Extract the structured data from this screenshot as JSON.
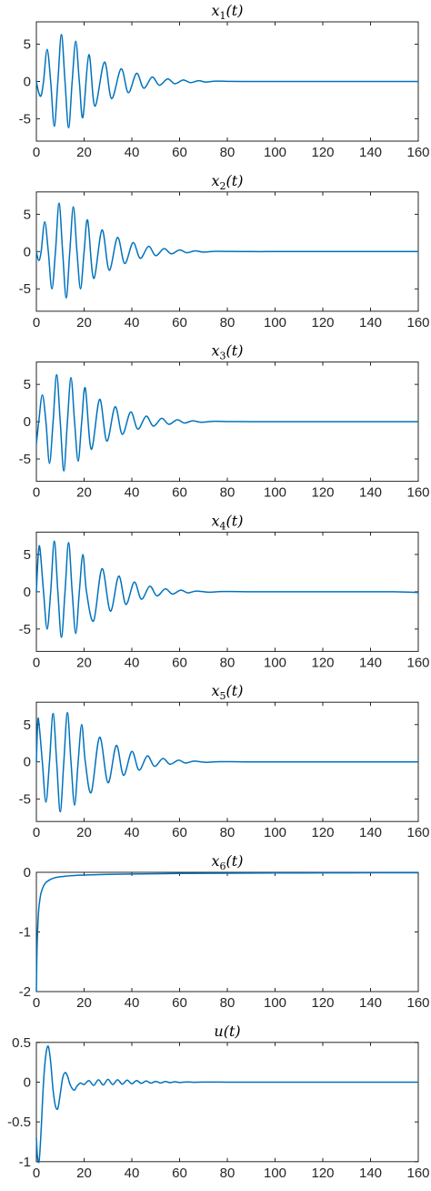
{
  "colors": {
    "series": "#0072BD",
    "axis": "#262626",
    "background": "#ffffff"
  },
  "chart_data": [
    {
      "type": "line",
      "title": "x1(t)",
      "xlim": [
        0,
        160
      ],
      "ylim": [
        -8,
        8
      ],
      "xticks": [
        0,
        20,
        40,
        60,
        80,
        100,
        120,
        140,
        160
      ],
      "yticks": [
        5,
        0,
        -5
      ],
      "xtick_labels": [
        "0",
        "20",
        "40",
        "60",
        "80",
        "100",
        "120",
        "140",
        "160"
      ],
      "ytick_labels": [
        "5",
        "0",
        "-5"
      ],
      "grid": false,
      "series": [
        {
          "x": [
            0,
            1,
            2,
            3,
            4.5,
            6,
            7.5,
            9,
            10.5,
            12,
            13.5,
            15,
            16.5,
            18,
            19.5,
            22,
            24.5,
            28.5,
            31.5,
            35.5,
            38.5,
            42,
            45,
            48.5,
            51.5,
            55,
            58,
            61.5,
            64.5,
            68,
            71,
            75,
            80,
            90,
            100,
            110,
            120,
            130,
            140,
            150,
            160
          ],
          "y": [
            0,
            -1.5,
            -1.9,
            0,
            4.3,
            0,
            -6.0,
            0,
            6.3,
            0,
            -6.2,
            0,
            5.4,
            0,
            -4.8,
            3.6,
            -3.3,
            2.6,
            -2.3,
            1.7,
            -1.5,
            1.1,
            -0.9,
            0.6,
            -0.5,
            0.35,
            -0.3,
            0.2,
            -0.15,
            0.1,
            -0.08,
            0.05,
            0.02,
            0,
            0,
            0,
            0,
            0,
            0,
            0,
            0
          ]
        }
      ]
    },
    {
      "type": "line",
      "title": "x2(t)",
      "xlim": [
        0,
        160
      ],
      "ylim": [
        -8,
        8
      ],
      "xticks": [
        0,
        20,
        40,
        60,
        80,
        100,
        120,
        140,
        160
      ],
      "yticks": [
        5,
        0,
        -5
      ],
      "xtick_labels": [
        "0",
        "20",
        "40",
        "60",
        "80",
        "100",
        "120",
        "140",
        "160"
      ],
      "ytick_labels": [
        "5",
        "0",
        "-5"
      ],
      "grid": false,
      "series": [
        {
          "x": [
            0,
            1,
            2,
            3.5,
            5,
            6.5,
            8,
            9.5,
            11,
            12.5,
            14,
            15.5,
            17,
            18.5,
            20,
            21.5,
            24,
            27.5,
            30.5,
            34,
            37,
            40.5,
            43.5,
            47,
            50,
            53.5,
            56.5,
            60,
            63,
            66.5,
            70,
            75,
            80,
            90,
            100,
            110,
            120,
            130,
            140,
            150,
            160
          ],
          "y": [
            0,
            -1.2,
            0,
            4.0,
            0,
            -5.0,
            0,
            6.5,
            0,
            -6.2,
            0,
            6.0,
            0,
            -5.0,
            0,
            4.2,
            -3.6,
            2.9,
            -2.5,
            1.9,
            -1.6,
            1.2,
            -0.9,
            0.7,
            -0.55,
            0.4,
            -0.3,
            0.22,
            -0.15,
            0.1,
            -0.07,
            0.04,
            0.02,
            0,
            0,
            0,
            0,
            0,
            0,
            0,
            0
          ]
        }
      ]
    },
    {
      "type": "line",
      "title": "x3(t)",
      "xlim": [
        0,
        160
      ],
      "ylim": [
        -8,
        8
      ],
      "xticks": [
        0,
        20,
        40,
        60,
        80,
        100,
        120,
        140,
        160
      ],
      "yticks": [
        5,
        0,
        -5
      ],
      "xtick_labels": [
        "0",
        "20",
        "40",
        "60",
        "80",
        "100",
        "120",
        "140",
        "160"
      ],
      "ytick_labels": [
        "5",
        "0",
        "-5"
      ],
      "grid": false,
      "series": [
        {
          "x": [
            0,
            1,
            2.5,
            4,
            5.5,
            7,
            8.5,
            10,
            11.5,
            13,
            14.5,
            16,
            17.5,
            19,
            20.5,
            23,
            26.5,
            29.5,
            33,
            36,
            39.5,
            42.5,
            46,
            49,
            52.5,
            55.5,
            59,
            62,
            65.5,
            69,
            74,
            80,
            90,
            100,
            110,
            120,
            130,
            140,
            150,
            160
          ],
          "y": [
            -3.0,
            0,
            3.6,
            0,
            -5.6,
            0,
            6.3,
            0,
            -6.6,
            0,
            5.9,
            0,
            -5.3,
            0,
            4.5,
            -3.7,
            3.0,
            -2.6,
            2.0,
            -1.7,
            1.3,
            -1.0,
            0.75,
            -0.6,
            0.45,
            -0.35,
            0.25,
            -0.18,
            0.12,
            -0.08,
            0.05,
            0.02,
            0,
            0,
            0,
            0,
            0,
            0,
            0,
            0
          ]
        }
      ]
    },
    {
      "type": "line",
      "title": "x4(t)",
      "xlim": [
        0,
        160
      ],
      "ylim": [
        -8,
        8
      ],
      "xticks": [
        0,
        20,
        40,
        60,
        80,
        100,
        120,
        140,
        160
      ],
      "yticks": [
        5,
        0,
        -5
      ],
      "xtick_labels": [
        "0",
        "20",
        "40",
        "60",
        "80",
        "100",
        "120",
        "140",
        "160"
      ],
      "ytick_labels": [
        "5",
        "0",
        "-5"
      ],
      "grid": false,
      "series": [
        {
          "x": [
            0,
            0.8,
            1.5,
            3,
            4.5,
            6,
            7.5,
            9,
            10.5,
            12,
            13.5,
            15,
            16.5,
            18,
            19.5,
            21,
            24,
            27.5,
            31,
            34.5,
            37.5,
            41,
            44,
            47.5,
            50.5,
            54,
            57,
            60.5,
            63.5,
            67,
            72,
            78,
            90,
            100,
            110,
            120,
            130,
            140,
            150,
            160
          ],
          "y": [
            0,
            5.0,
            5.8,
            0,
            -5.0,
            0,
            6.8,
            0,
            -6.1,
            0,
            6.6,
            0,
            -5.6,
            0,
            5.0,
            0,
            -3.9,
            3.1,
            -2.6,
            2.1,
            -1.7,
            1.3,
            -1.0,
            0.75,
            -0.55,
            0.4,
            -0.3,
            0.22,
            -0.15,
            0.1,
            -0.06,
            0.03,
            0,
            0,
            0,
            0,
            0,
            0,
            0,
            -0.1
          ]
        }
      ]
    },
    {
      "type": "line",
      "title": "x5(t)",
      "xlim": [
        0,
        160
      ],
      "ylim": [
        -8,
        8
      ],
      "xticks": [
        0,
        20,
        40,
        60,
        80,
        100,
        120,
        140,
        160
      ],
      "yticks": [
        5,
        0,
        -5
      ],
      "xtick_labels": [
        "0",
        "20",
        "40",
        "60",
        "80",
        "100",
        "120",
        "140",
        "160"
      ],
      "ytick_labels": [
        "5",
        "0",
        "-5"
      ],
      "grid": false,
      "series": [
        {
          "x": [
            0,
            0.6,
            1.2,
            2.5,
            4,
            5.5,
            7,
            8.5,
            10,
            11.5,
            13,
            14.5,
            16,
            17.5,
            19,
            20.5,
            23,
            26.5,
            30,
            33.5,
            36.5,
            40,
            43,
            46.5,
            49.5,
            53,
            56,
            59.5,
            62.5,
            66,
            71,
            77,
            90,
            100,
            110,
            120,
            130,
            140,
            150,
            160
          ],
          "y": [
            0,
            5.5,
            4.8,
            0,
            -5.4,
            0,
            6.5,
            0,
            -6.7,
            0,
            6.6,
            0,
            -5.8,
            0,
            5.0,
            0,
            -4.1,
            3.3,
            -2.8,
            2.2,
            -1.8,
            1.4,
            -1.1,
            0.8,
            -0.6,
            0.45,
            -0.32,
            0.23,
            -0.16,
            0.1,
            -0.06,
            0.03,
            0,
            0,
            0,
            0,
            0,
            0,
            0,
            0
          ]
        }
      ]
    },
    {
      "type": "line",
      "title": "x6(t)",
      "xlim": [
        0,
        160
      ],
      "ylim": [
        -2,
        0
      ],
      "xticks": [
        0,
        20,
        40,
        60,
        80,
        100,
        120,
        140,
        160
      ],
      "yticks": [
        0,
        -1,
        -2
      ],
      "xtick_labels": [
        "0",
        "20",
        "40",
        "60",
        "80",
        "100",
        "120",
        "140",
        "160"
      ],
      "ytick_labels": [
        "0",
        "-1",
        "-2"
      ],
      "grid": false,
      "series": [
        {
          "x": [
            0,
            0.2,
            0.5,
            1,
            1.5,
            2,
            3,
            4,
            5,
            7,
            10,
            15,
            20,
            30,
            40,
            60,
            80,
            100,
            120,
            140,
            160
          ],
          "y": [
            -2.0,
            -1.45,
            -1.0,
            -0.62,
            -0.45,
            -0.34,
            -0.23,
            -0.17,
            -0.14,
            -0.1,
            -0.075,
            -0.055,
            -0.045,
            -0.035,
            -0.028,
            -0.02,
            -0.015,
            -0.012,
            -0.01,
            -0.008,
            -0.007
          ]
        }
      ]
    },
    {
      "type": "line",
      "title": "u(t)",
      "xlim": [
        0,
        160
      ],
      "ylim": [
        -1,
        0.5
      ],
      "xticks": [
        0,
        20,
        40,
        60,
        80,
        100,
        120,
        140,
        160
      ],
      "yticks": [
        0.5,
        0,
        -0.5,
        -1
      ],
      "xtick_labels": [
        "0",
        "20",
        "40",
        "60",
        "80",
        "100",
        "120",
        "140",
        "160"
      ],
      "ytick_labels": [
        "0.5",
        "0",
        "-0.5",
        "-1"
      ],
      "grid": false,
      "series": [
        {
          "x": [
            0,
            0.5,
            1.2,
            2,
            3,
            4,
            5,
            6,
            7,
            8,
            9,
            10,
            11,
            12,
            13,
            14,
            15,
            16,
            17,
            18.5,
            20,
            22,
            24,
            26,
            28,
            30,
            32,
            34,
            36,
            38,
            40,
            42,
            44,
            46,
            48,
            50,
            52,
            54,
            56,
            58,
            60,
            63,
            66,
            70,
            80,
            90,
            100,
            120,
            140,
            160
          ],
          "y": [
            -0.7,
            -0.95,
            -0.98,
            -0.6,
            0,
            0.35,
            0.45,
            0.25,
            -0.1,
            -0.3,
            -0.33,
            -0.15,
            0.05,
            0.12,
            0.08,
            -0.02,
            -0.08,
            -0.1,
            -0.05,
            -0.01,
            -0.03,
            0.02,
            -0.04,
            0.03,
            -0.035,
            0.035,
            -0.03,
            0.03,
            -0.025,
            0.025,
            -0.02,
            0.02,
            -0.015,
            0.015,
            -0.012,
            0.01,
            -0.01,
            0.008,
            -0.006,
            0.005,
            -0.004,
            0.003,
            -0.002,
            0.001,
            0,
            0,
            0,
            0,
            0,
            0
          ]
        }
      ]
    }
  ]
}
